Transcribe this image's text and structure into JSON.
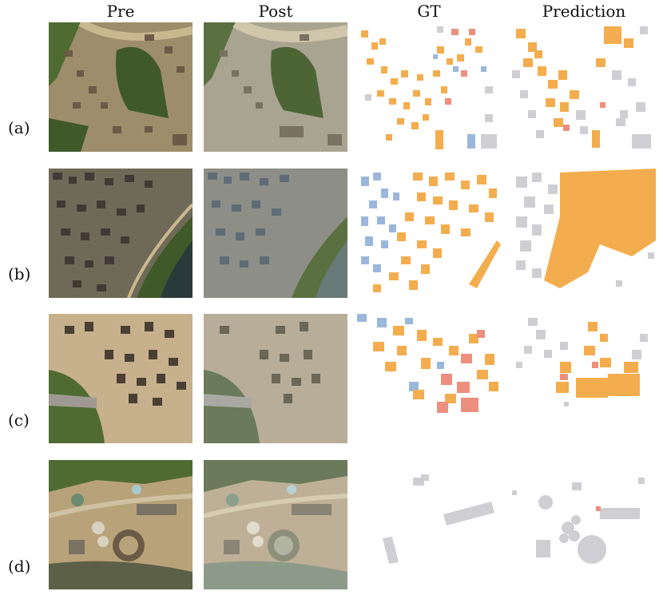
{
  "columns": [
    "Pre",
    "Post",
    "GT",
    "Prediction"
  ],
  "rows": [
    "(a)",
    "(b)",
    "(c)",
    "(d)"
  ],
  "colors": {
    "undamaged": "#f3ad4e",
    "damaged": "#ec8f7d",
    "unclassified": "#9bb7dc",
    "background_building": "#cfcfd3",
    "pre_ground": "#b8a27a",
    "post_ground": "#a9a48f",
    "vegetation": "#4f6b32",
    "water": "#5b6047"
  }
}
